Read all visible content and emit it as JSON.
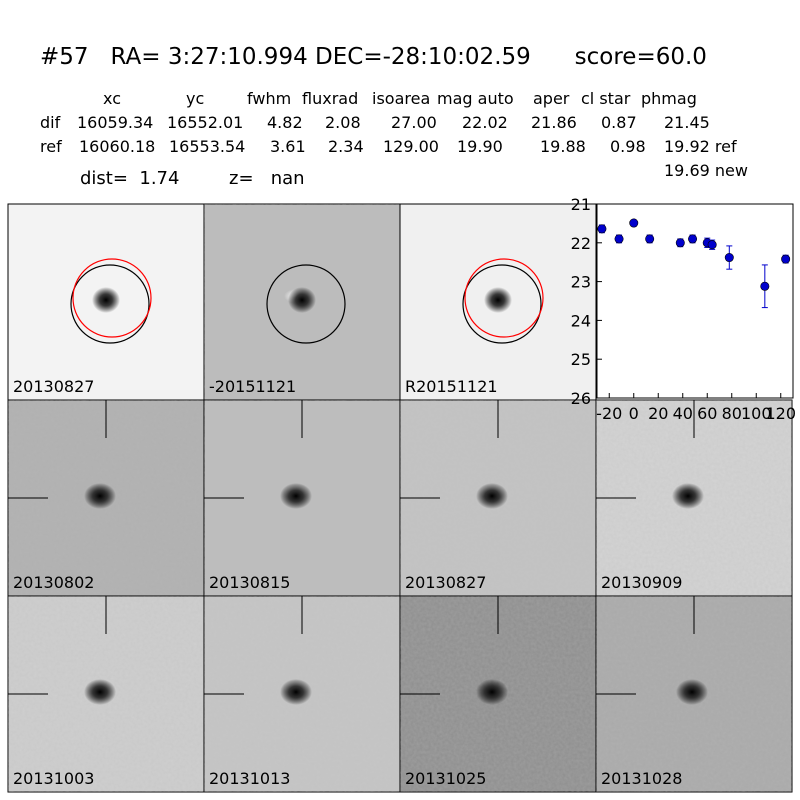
{
  "title": "#57   RA= 3:27:10.994 DEC=-28:10:02.59      score=60.0",
  "table": {
    "header": [
      "xc",
      "yc",
      "fwhm",
      "fluxrad",
      "isoarea",
      "mag auto",
      "aper",
      "cl star",
      "phmag"
    ],
    "rows": [
      [
        "dif",
        "16059.34",
        "16552.01",
        "4.82",
        "2.08",
        "27.00",
        "22.02",
        "21.86",
        "0.87",
        "21.45"
      ],
      [
        "ref",
        "16060.18",
        "16553.54",
        "3.61",
        "2.34",
        "129.00",
        "19.90",
        "19.88",
        "0.98",
        "19.92 ref"
      ]
    ],
    "extra": "19.69 new"
  },
  "dist": "dist=  1.74",
  "z": "z=   nan",
  "panels": [
    {
      "label": "20130827"
    },
    {
      "label": "-20151121"
    },
    {
      "label": "R20151121"
    },
    {
      "label": "20130802"
    },
    {
      "label": "20130815"
    },
    {
      "label": "20130827",
      "color": "#ff0000"
    },
    {
      "label": "20130909"
    },
    {
      "label": "20131003"
    },
    {
      "label": "20131013"
    },
    {
      "label": "20131025"
    },
    {
      "label": "20131028"
    }
  ],
  "chart_data": {
    "type": "errorbar",
    "color": "#0000cc",
    "x": [
      -26,
      -12,
      0,
      13,
      38,
      48,
      60,
      64,
      78,
      107,
      124
    ],
    "values": [
      21.64,
      21.9,
      21.49,
      21.9,
      22.0,
      21.9,
      22.0,
      22.05,
      22.38,
      23.12,
      22.42
    ],
    "errors": [
      0.1,
      0.1,
      0.05,
      0.1,
      0.1,
      0.1,
      0.12,
      0.12,
      0.3,
      0.55,
      0.1
    ],
    "xlim": [
      -30,
      130
    ],
    "ylim": [
      26,
      21
    ],
    "y_inverted": true,
    "xticks": [
      -20,
      0,
      20,
      40,
      60,
      80,
      100,
      120
    ],
    "yticks": [
      21,
      22,
      23,
      24,
      25,
      26
    ]
  }
}
